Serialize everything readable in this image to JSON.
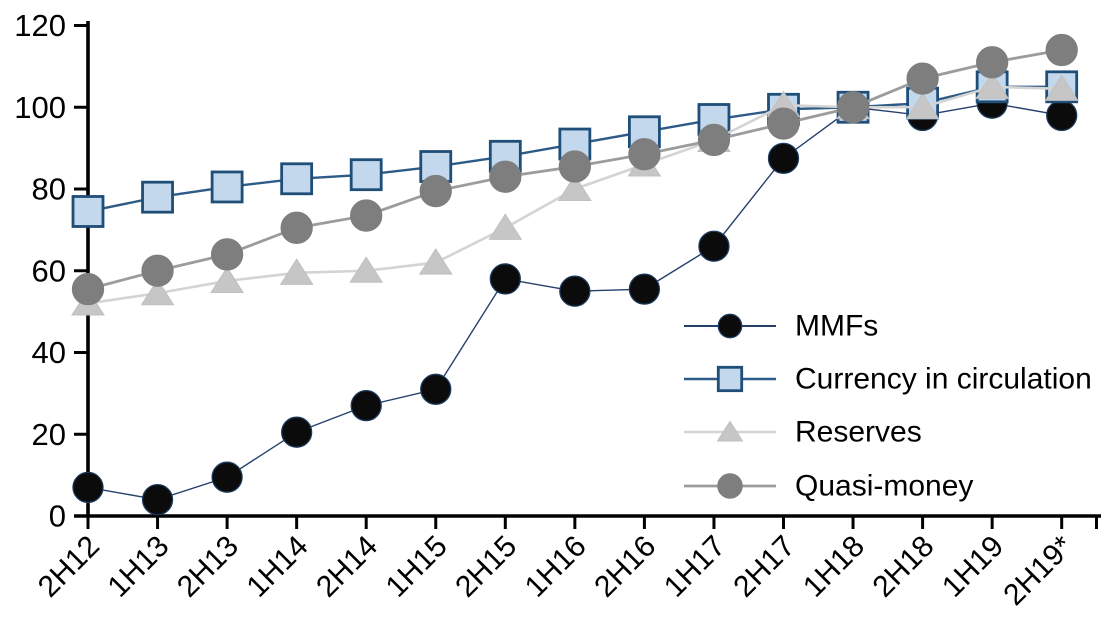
{
  "chart_data": {
    "type": "line",
    "title": "",
    "xlabel": "",
    "ylabel": "",
    "grid": false,
    "background_color": "#ffffff",
    "axis_color": "#000000",
    "ylim": [
      0,
      120
    ],
    "yticks": [
      0,
      20,
      40,
      60,
      80,
      100,
      120
    ],
    "categories": [
      "2H12",
      "1H13",
      "2H13",
      "1H14",
      "2H14",
      "1H15",
      "2H15",
      "1H16",
      "2H16",
      "1H17",
      "2H17",
      "1H18",
      "2H18",
      "1H19",
      "2H19*"
    ],
    "legend_position": "inside-right-middle",
    "series": [
      {
        "name": "MMFs",
        "marker": "circle",
        "marker_fill": "#0b0b0b",
        "marker_stroke": "#1c3a5e",
        "line_color": "#24406b",
        "line_width": 1.4,
        "marker_size": 15,
        "values": [
          7,
          4,
          9.5,
          20.5,
          27,
          31,
          58,
          55,
          55.5,
          66,
          87.5,
          100,
          98,
          101,
          98
        ]
      },
      {
        "name": "Currency in circulation",
        "marker": "square",
        "marker_fill": "#c3d8ec",
        "marker_stroke": "#1f4e79",
        "line_color": "#2d5a87",
        "line_width": 2.4,
        "marker_size": 15,
        "values": [
          74.5,
          78,
          80.5,
          82.5,
          83.5,
          85.5,
          88,
          91,
          94,
          97,
          99.5,
          100,
          101,
          105,
          105
        ]
      },
      {
        "name": "Reserves",
        "marker": "triangle",
        "marker_fill": "#c6c6c6",
        "marker_stroke": "#c0c0c0",
        "line_color": "#d4d4d4",
        "line_width": 2.6,
        "marker_size": 16,
        "values": [
          52,
          54.5,
          57.5,
          59.5,
          60,
          62,
          70.5,
          80,
          86,
          92,
          100.5,
          100,
          100,
          105,
          104.5
        ]
      },
      {
        "name": "Quasi-money",
        "marker": "circle",
        "marker_fill": "#7e7e7e",
        "marker_stroke": "#7e7e7e",
        "line_color": "#9c9c9c",
        "line_width": 2.8,
        "marker_size": 15.5,
        "values": [
          55.5,
          60,
          64,
          70.5,
          73.5,
          79.5,
          83,
          85.5,
          88.5,
          92,
          96,
          100,
          107,
          111,
          114
        ]
      }
    ]
  }
}
